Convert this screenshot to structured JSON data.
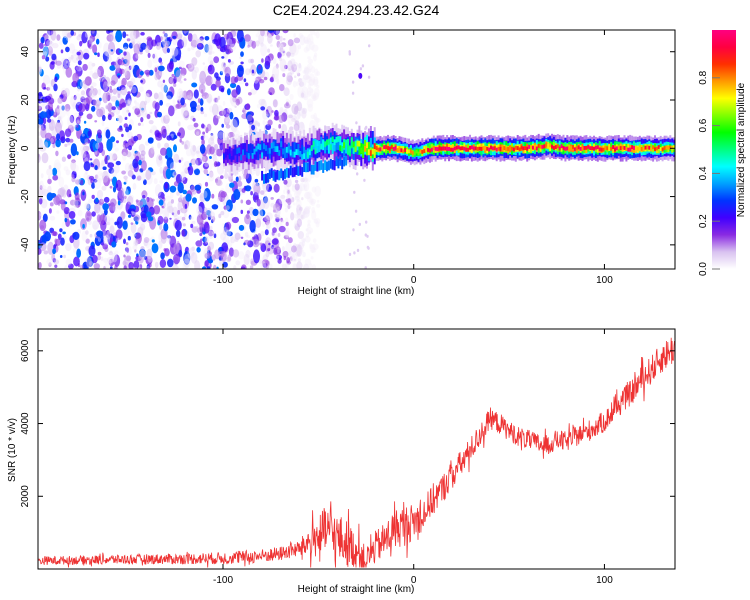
{
  "figure_title": "C2E4.2024.294.23.42.G24",
  "chart_data": [
    {
      "type": "heatmap",
      "title": "C2E4.2024.294.23.42.G24",
      "xlabel": "Height of straight line (km)",
      "ylabel": "Frequency (Hz)",
      "xlim": [
        -197,
        137
      ],
      "ylim": [
        -50,
        49
      ],
      "x_ticks": [
        -100,
        0,
        100
      ],
      "y_ticks": [
        -40,
        -20,
        0,
        20,
        40
      ],
      "colorbar": {
        "label": "Normalized spectral amplitude",
        "range": [
          0,
          1
        ],
        "ticks": [
          "0.0",
          "0.2",
          "0.4",
          "0.6",
          "0.8"
        ],
        "colors": [
          "#ffffff",
          "#d9c2f0",
          "#8a2be2",
          "#4000ff",
          "#0033ff",
          "#00a0ff",
          "#00ffff",
          "#00ff80",
          "#00ff00",
          "#80ff00",
          "#ffff00",
          "#ff9900",
          "#ff3000",
          "#ff0040",
          "#ff0080"
        ]
      },
      "ridge": {
        "x": [
          -100,
          -90,
          -80,
          -70,
          -60,
          -50,
          -40,
          -30,
          -20,
          -10,
          0,
          10,
          20,
          30,
          40,
          50,
          60,
          70,
          80,
          90,
          100,
          110,
          120,
          130,
          137
        ],
        "y": [
          -3,
          -2,
          -1,
          0,
          -2,
          1,
          2,
          0,
          0,
          0,
          -2,
          0,
          0,
          0,
          0,
          0,
          0,
          1,
          0,
          0,
          0,
          0,
          0,
          0,
          0
        ],
        "amplitude": [
          0.25,
          0.3,
          0.35,
          0.35,
          0.4,
          0.45,
          0.5,
          0.6,
          0.85,
          0.9,
          0.7,
          0.9,
          0.9,
          0.9,
          0.9,
          0.9,
          0.9,
          0.85,
          0.9,
          0.9,
          0.85,
          0.9,
          0.85,
          0.8,
          0.7
        ]
      },
      "noise_region_x": [
        -197,
        -60
      ]
    },
    {
      "type": "line",
      "xlabel": "Height of straight line (km)",
      "ylabel": "SNR (10 * v/v)",
      "xlim": [
        -197,
        137
      ],
      "ylim": [
        0,
        6600
      ],
      "x_ticks": [
        -100,
        0,
        100
      ],
      "y_ticks": [
        2000,
        4000,
        6000
      ],
      "color": "#ee3333",
      "series": [
        {
          "x": [
            -197,
            -180,
            -160,
            -140,
            -120,
            -100,
            -90,
            -80,
            -70,
            -60,
            -50,
            -45,
            -40,
            -35,
            -30,
            -25,
            -20,
            -15,
            -10,
            -5,
            0,
            5,
            10,
            15,
            20,
            25,
            30,
            35,
            40,
            45,
            50,
            55,
            60,
            65,
            70,
            75,
            80,
            85,
            90,
            95,
            100,
            105,
            110,
            115,
            120,
            125,
            130,
            137
          ],
          "y": [
            230,
            240,
            260,
            270,
            280,
            300,
            320,
            360,
            420,
            560,
            900,
            1100,
            850,
            700,
            500,
            250,
            600,
            800,
            1100,
            1200,
            1300,
            1500,
            1900,
            2200,
            2600,
            2900,
            3300,
            3700,
            4150,
            4000,
            3800,
            3650,
            3550,
            3450,
            3400,
            3550,
            3500,
            3650,
            3750,
            3900,
            4050,
            4350,
            4650,
            4900,
            5250,
            5500,
            5800,
            6100
          ],
          "spread": [
            120,
            120,
            130,
            140,
            150,
            170,
            180,
            190,
            200,
            230,
            600,
            700,
            700,
            650,
            500,
            350,
            450,
            500,
            550,
            550,
            500,
            450,
            450,
            400,
            400,
            380,
            350,
            330,
            300,
            300,
            280,
            280,
            280,
            280,
            280,
            280,
            280,
            280,
            300,
            300,
            300,
            320,
            330,
            350,
            380,
            400,
            420,
            450
          ]
        }
      ]
    }
  ]
}
